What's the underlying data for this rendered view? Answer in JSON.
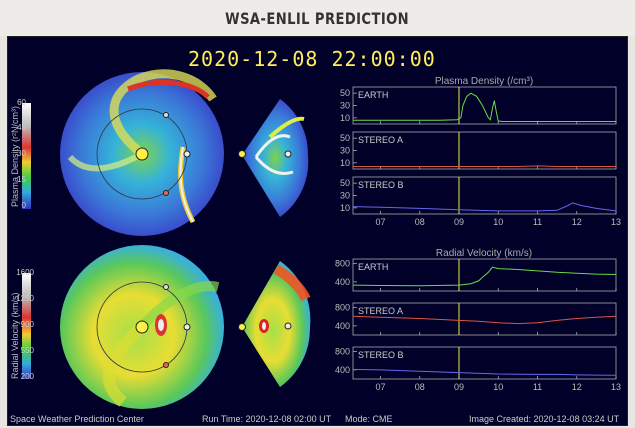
{
  "page_title": "WSA-ENLIL PREDICTION",
  "timestamp": "2020-12-08 22:00:00",
  "density_colorbar": {
    "label": "Plasma Density (r²N/cm³)",
    "ticks": [
      "60",
      "45",
      "30",
      "15",
      "0"
    ]
  },
  "velocity_colorbar": {
    "label": "Radial Velocity (km/s)",
    "ticks": [
      "1600",
      "1250",
      "900",
      "550",
      "200"
    ]
  },
  "footer": {
    "left": "Space Weather Prediction Center",
    "runtime": "Run Time: 2020-12-08 02:00 UT",
    "mode": "Mode: CME",
    "created": "Image Created: 2020-12-08 03:24 UT"
  },
  "colors": {
    "earth": "#66dd44",
    "stereo_a": "#dd5544",
    "stereo_b": "#6666ee",
    "now_line": "#eeee44"
  },
  "chart_data": [
    {
      "type": "line",
      "title": "Plasma Density (/cm³)",
      "ylim": [
        0,
        60
      ],
      "yticks": [
        10,
        30,
        50
      ],
      "x": [
        6.3,
        7,
        7.5,
        8,
        8.5,
        8.95,
        9.05,
        9.1,
        9.2,
        9.3,
        9.45,
        9.6,
        9.75,
        9.8,
        9.85,
        9.9,
        9.95,
        10,
        10.1,
        10.5,
        11,
        11.5,
        12,
        12.5,
        13
      ],
      "series": [
        {
          "name": "EARTH",
          "color": "#66dd44",
          "values": [
            6,
            6,
            6,
            6,
            6,
            7,
            10,
            30,
            45,
            50,
            45,
            30,
            10,
            7,
            25,
            38,
            20,
            5,
            4,
            4,
            4,
            4,
            4,
            4,
            4
          ]
        }
      ]
    },
    {
      "type": "line",
      "ylim": [
        0,
        60
      ],
      "yticks": [
        10,
        30,
        50
      ],
      "x": [
        6.3,
        7,
        8,
        9,
        10,
        10.5,
        11,
        11.5,
        12,
        12.5,
        13
      ],
      "series": [
        {
          "name": "STEREO A",
          "color": "#dd5544",
          "values": [
            4,
            4,
            4,
            4,
            4,
            4,
            5,
            4,
            4,
            4,
            4
          ]
        }
      ]
    },
    {
      "type": "line",
      "ylim": [
        0,
        60
      ],
      "yticks": [
        10,
        30,
        50
      ],
      "x": [
        6.3,
        7,
        8,
        9,
        10,
        10.5,
        11,
        11.5,
        11.75,
        11.9,
        12.1,
        12.5,
        13
      ],
      "series": [
        {
          "name": "STEREO B",
          "color": "#6666ee",
          "values": [
            12,
            11,
            9,
            7,
            5,
            5,
            5,
            6,
            13,
            18,
            14,
            9,
            5
          ]
        }
      ]
    },
    {
      "type": "line",
      "title": "Radial Velocity (km/s)",
      "ylim": [
        200,
        900
      ],
      "yticks": [
        400,
        800
      ],
      "x": [
        6.3,
        7,
        8,
        9,
        9.3,
        9.5,
        9.6,
        9.75,
        9.85,
        10,
        10.5,
        11,
        11.5,
        12,
        12.5,
        13
      ],
      "series": [
        {
          "name": "EARTH",
          "color": "#66dd44",
          "values": [
            330,
            320,
            315,
            330,
            360,
            420,
            500,
            610,
            720,
            690,
            670,
            640,
            610,
            590,
            570,
            560
          ]
        }
      ]
    },
    {
      "type": "line",
      "ylim": [
        200,
        900
      ],
      "yticks": [
        400,
        800
      ],
      "x": [
        6.3,
        7,
        8,
        9,
        9.5,
        10,
        10.5,
        11,
        11.5,
        12,
        12.5,
        13
      ],
      "series": [
        {
          "name": "STEREO A",
          "color": "#dd5544",
          "values": [
            610,
            590,
            560,
            520,
            500,
            470,
            450,
            470,
            520,
            560,
            590,
            610
          ]
        }
      ]
    },
    {
      "type": "line",
      "ylim": [
        200,
        900
      ],
      "yticks": [
        400,
        800
      ],
      "x": [
        6.3,
        7,
        8,
        9,
        10,
        11,
        11.5,
        12,
        12.5,
        13
      ],
      "series": [
        {
          "name": "STEREO B",
          "color": "#6666ee",
          "values": [
            410,
            400,
            370,
            340,
            310,
            300,
            300,
            290,
            285,
            280
          ]
        }
      ]
    }
  ],
  "x_ticks": [
    "07",
    "08",
    "09",
    "10",
    "11",
    "12",
    "13"
  ],
  "x_range": [
    6.3,
    13
  ],
  "now_x": 9
}
